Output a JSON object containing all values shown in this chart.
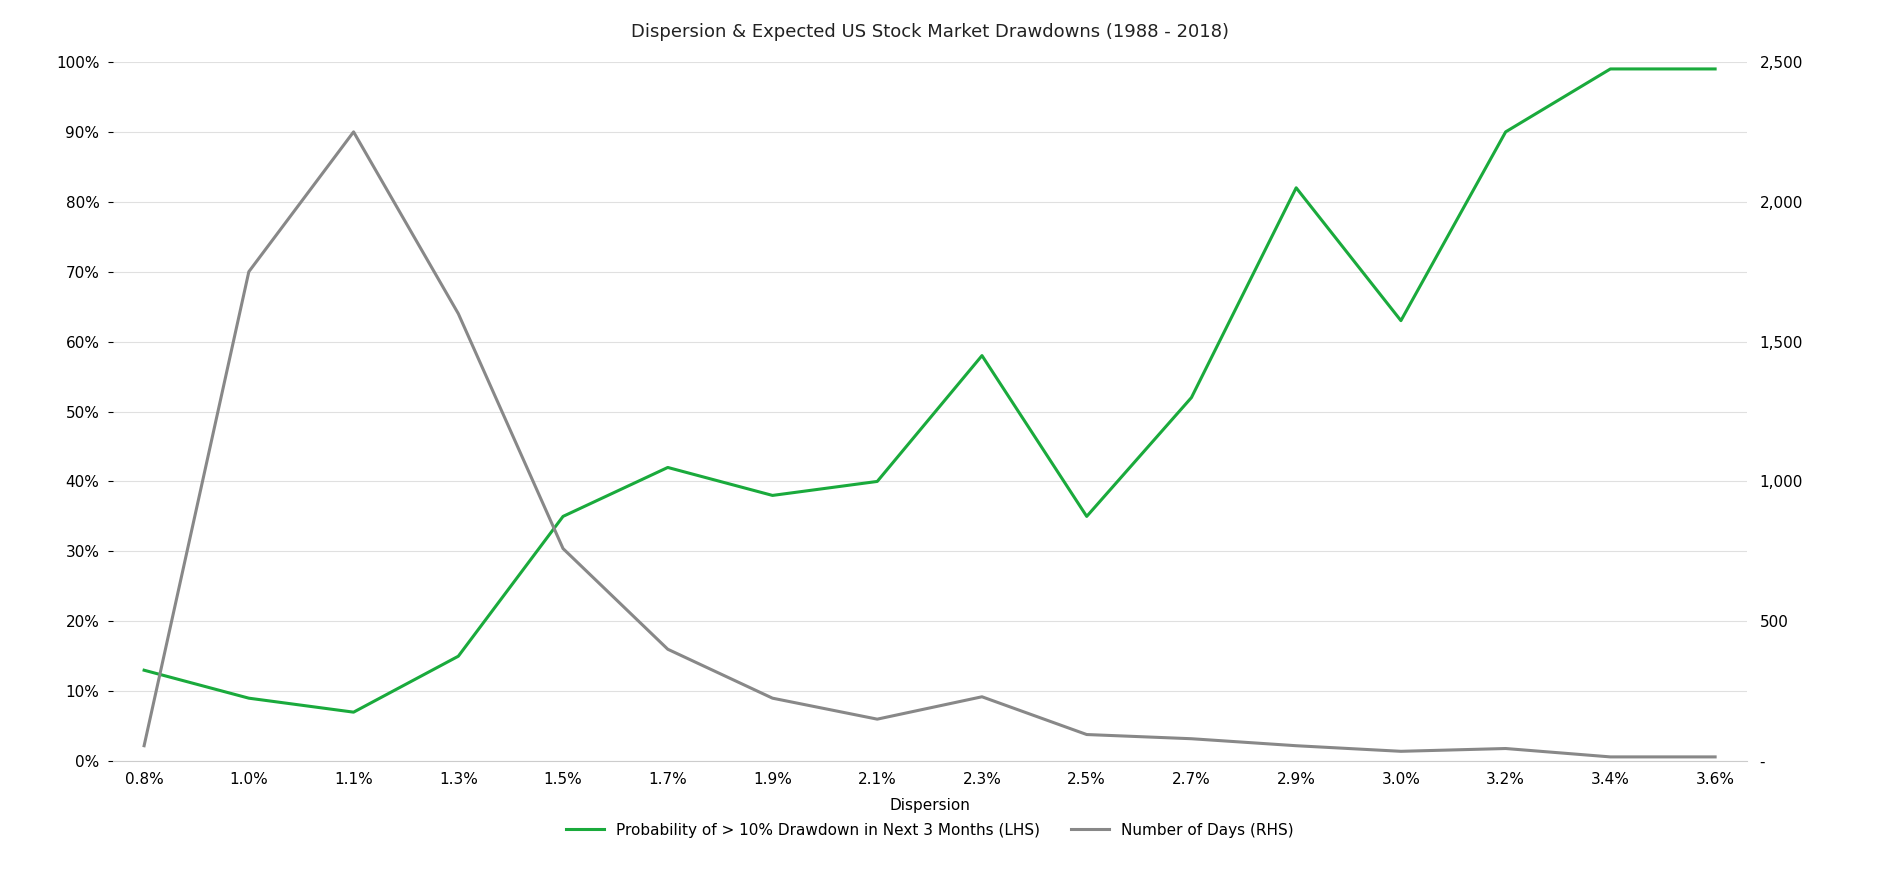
{
  "title": "Dispersion & Expected US Stock Market Drawdowns (1988 - 2018)",
  "xlabel": "Dispersion",
  "x_labels": [
    "0.8%",
    "1.0%",
    "1.1%",
    "1.3%",
    "1.5%",
    "1.7%",
    "1.9%",
    "2.1%",
    "2.3%",
    "2.5%",
    "2.7%",
    "2.9%",
    "3.0%",
    "3.2%",
    "3.4%",
    "3.6%"
  ],
  "x_values": [
    0,
    1,
    2,
    3,
    4,
    5,
    6,
    7,
    8,
    9,
    10,
    11,
    12,
    13,
    14,
    15
  ],
  "green_line": [
    0.13,
    0.09,
    0.07,
    0.15,
    0.35,
    0.42,
    0.38,
    0.4,
    0.58,
    0.35,
    0.52,
    0.82,
    0.63,
    0.9,
    0.99,
    0.99
  ],
  "gray_line": [
    55,
    1750,
    2250,
    1600,
    760,
    400,
    225,
    150,
    230,
    95,
    80,
    55,
    35,
    45,
    15,
    15
  ],
  "green_color": "#1aaa3c",
  "gray_color": "#888888",
  "lhs_ylim": [
    0.0,
    1.0
  ],
  "rhs_ylim": [
    0,
    2500
  ],
  "lhs_yticks": [
    0.0,
    0.1,
    0.2,
    0.3,
    0.4,
    0.5,
    0.6,
    0.7,
    0.8,
    0.9,
    1.0
  ],
  "lhs_yticklabels": [
    "0%",
    "10%",
    "20%",
    "30%",
    "40%",
    "50%",
    "60%",
    "70%",
    "80%",
    "90%",
    "100%"
  ],
  "rhs_yticks": [
    0,
    500,
    1000,
    1500,
    2000,
    2500
  ],
  "rhs_yticklabels": [
    "-",
    "500",
    "1,000",
    "1,500",
    "2,000",
    "2,500"
  ],
  "legend_green": "Probability of > 10% Drawdown in Next 3 Months (LHS)",
  "legend_gray": "Number of Days (RHS)",
  "title_fontsize": 13,
  "label_fontsize": 11,
  "tick_fontsize": 11,
  "legend_fontsize": 11,
  "line_width": 2.2,
  "background_color": "#ffffff"
}
